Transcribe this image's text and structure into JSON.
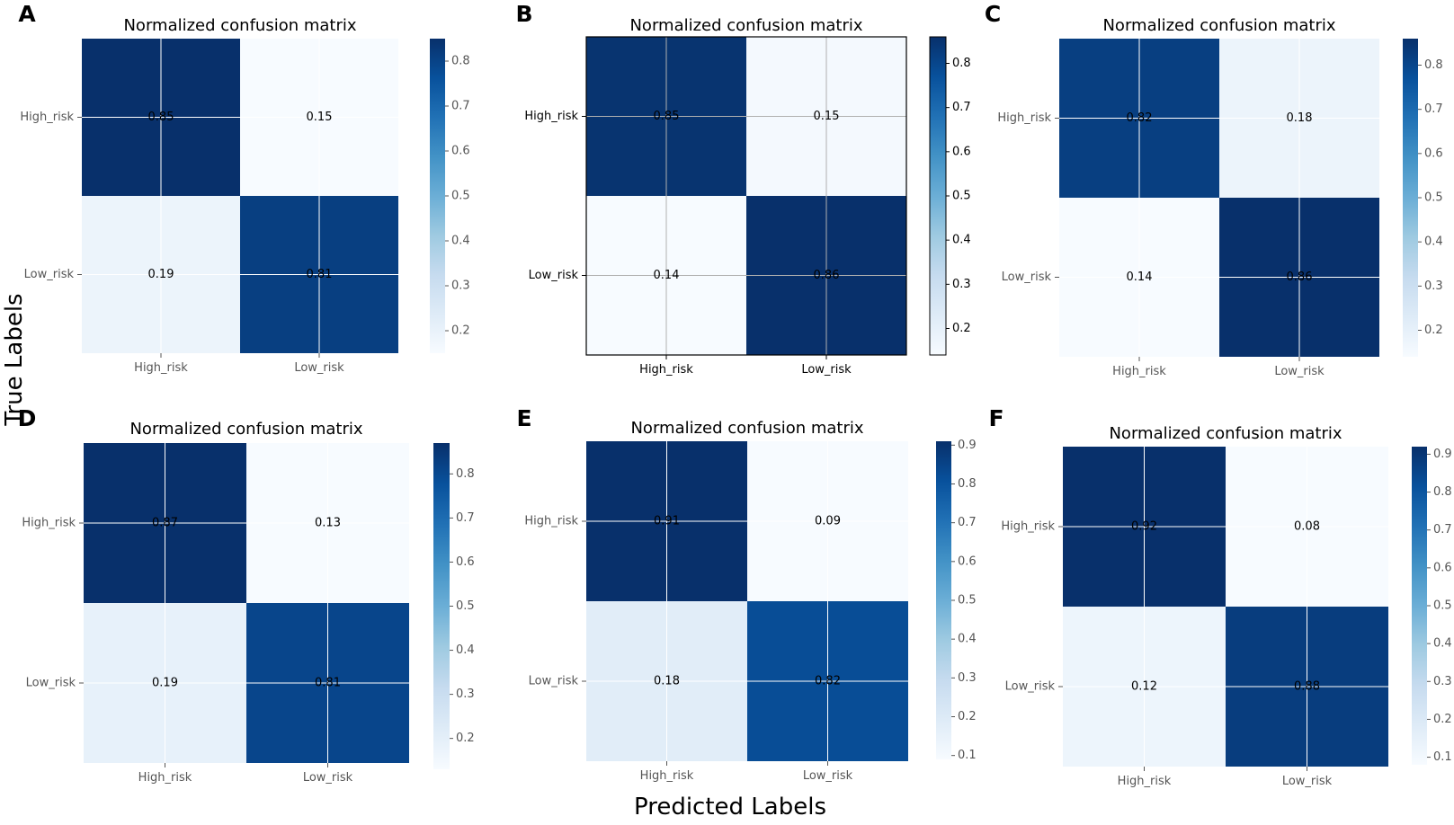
{
  "figure": {
    "ylabel": "True Labels",
    "xlabel": "Predicted Labels"
  },
  "chart_data": [
    {
      "panel": "A",
      "type": "heatmap",
      "title": "Normalized confusion matrix",
      "rows": [
        "High_risk",
        "Low_risk"
      ],
      "cols": [
        "High_risk",
        "Low_risk"
      ],
      "values": [
        [
          0.85,
          0.15
        ],
        [
          0.19,
          0.81
        ]
      ],
      "cell_labels": [
        [
          "0.85",
          "0.15"
        ],
        [
          "0.19",
          "0.81"
        ]
      ],
      "colorbar": {
        "range": [
          0.15,
          0.85
        ],
        "ticks": [
          "0.2",
          "0.3",
          "0.4",
          "0.5",
          "0.6",
          "0.7",
          "0.8"
        ]
      },
      "grid": true,
      "frame": false,
      "bold_ticks": false
    },
    {
      "panel": "B",
      "type": "heatmap",
      "title": "Normalized confusion matrix",
      "rows": [
        "High_risk",
        "Low_risk"
      ],
      "cols": [
        "High_risk",
        "Low_risk"
      ],
      "values": [
        [
          0.85,
          0.15
        ],
        [
          0.14,
          0.86
        ]
      ],
      "cell_labels": [
        [
          "0.85",
          "0.15"
        ],
        [
          "0.14",
          "0.86"
        ]
      ],
      "colorbar": {
        "range": [
          0.14,
          0.86
        ],
        "ticks": [
          "0.2",
          "0.3",
          "0.4",
          "0.5",
          "0.6",
          "0.7",
          "0.8"
        ]
      },
      "grid": true,
      "frame": true,
      "bold_ticks": true
    },
    {
      "panel": "C",
      "type": "heatmap",
      "title": "Normalized confusion matrix",
      "rows": [
        "High_risk",
        "Low_risk"
      ],
      "cols": [
        "High_risk",
        "Low_risk"
      ],
      "values": [
        [
          0.82,
          0.18
        ],
        [
          0.14,
          0.86
        ]
      ],
      "cell_labels": [
        [
          "0.82",
          "0.18"
        ],
        [
          "0.14",
          "0.86"
        ]
      ],
      "colorbar": {
        "range": [
          0.14,
          0.86
        ],
        "ticks": [
          "0.2",
          "0.3",
          "0.4",
          "0.5",
          "0.6",
          "0.7",
          "0.8"
        ]
      },
      "grid": true,
      "frame": false,
      "bold_ticks": false
    },
    {
      "panel": "D",
      "type": "heatmap",
      "title": "Normalized confusion matrix",
      "rows": [
        "High_risk",
        "Low_risk"
      ],
      "cols": [
        "High_risk",
        "Low_risk"
      ],
      "values": [
        [
          0.87,
          0.13
        ],
        [
          0.19,
          0.81
        ]
      ],
      "cell_labels": [
        [
          "0.87",
          "0.13"
        ],
        [
          "0.19",
          "0.81"
        ]
      ],
      "colorbar": {
        "range": [
          0.13,
          0.87
        ],
        "ticks": [
          "0.2",
          "0.3",
          "0.4",
          "0.5",
          "0.6",
          "0.7",
          "0.8"
        ]
      },
      "grid": true,
      "frame": false,
      "bold_ticks": false
    },
    {
      "panel": "E",
      "type": "heatmap",
      "title": "Normalized confusion matrix",
      "rows": [
        "High_risk",
        "Low_risk"
      ],
      "cols": [
        "High_risk",
        "Low_risk"
      ],
      "values": [
        [
          0.91,
          0.09
        ],
        [
          0.18,
          0.82
        ]
      ],
      "cell_labels": [
        [
          "0.91",
          "0.09"
        ],
        [
          "0.18",
          "0.82"
        ]
      ],
      "colorbar": {
        "range": [
          0.09,
          0.91
        ],
        "ticks": [
          "0.1",
          "0.2",
          "0.3",
          "0.4",
          "0.5",
          "0.6",
          "0.7",
          "0.8",
          "0.9"
        ]
      },
      "grid": true,
      "frame": false,
      "bold_ticks": false
    },
    {
      "panel": "F",
      "type": "heatmap",
      "title": "Normalized confusion matrix",
      "rows": [
        "High_risk",
        "Low_risk"
      ],
      "cols": [
        "High_risk",
        "Low_risk"
      ],
      "values": [
        [
          0.92,
          0.08
        ],
        [
          0.12,
          0.88
        ]
      ],
      "cell_labels": [
        [
          "0.92",
          "0.08"
        ],
        [
          "0.12",
          "0.88"
        ]
      ],
      "colorbar": {
        "range": [
          0.08,
          0.92
        ],
        "ticks": [
          "0.1",
          "0.2",
          "0.3",
          "0.4",
          "0.5",
          "0.6",
          "0.7",
          "0.8",
          "0.9"
        ]
      },
      "grid": true,
      "frame": false,
      "bold_ticks": false
    }
  ]
}
